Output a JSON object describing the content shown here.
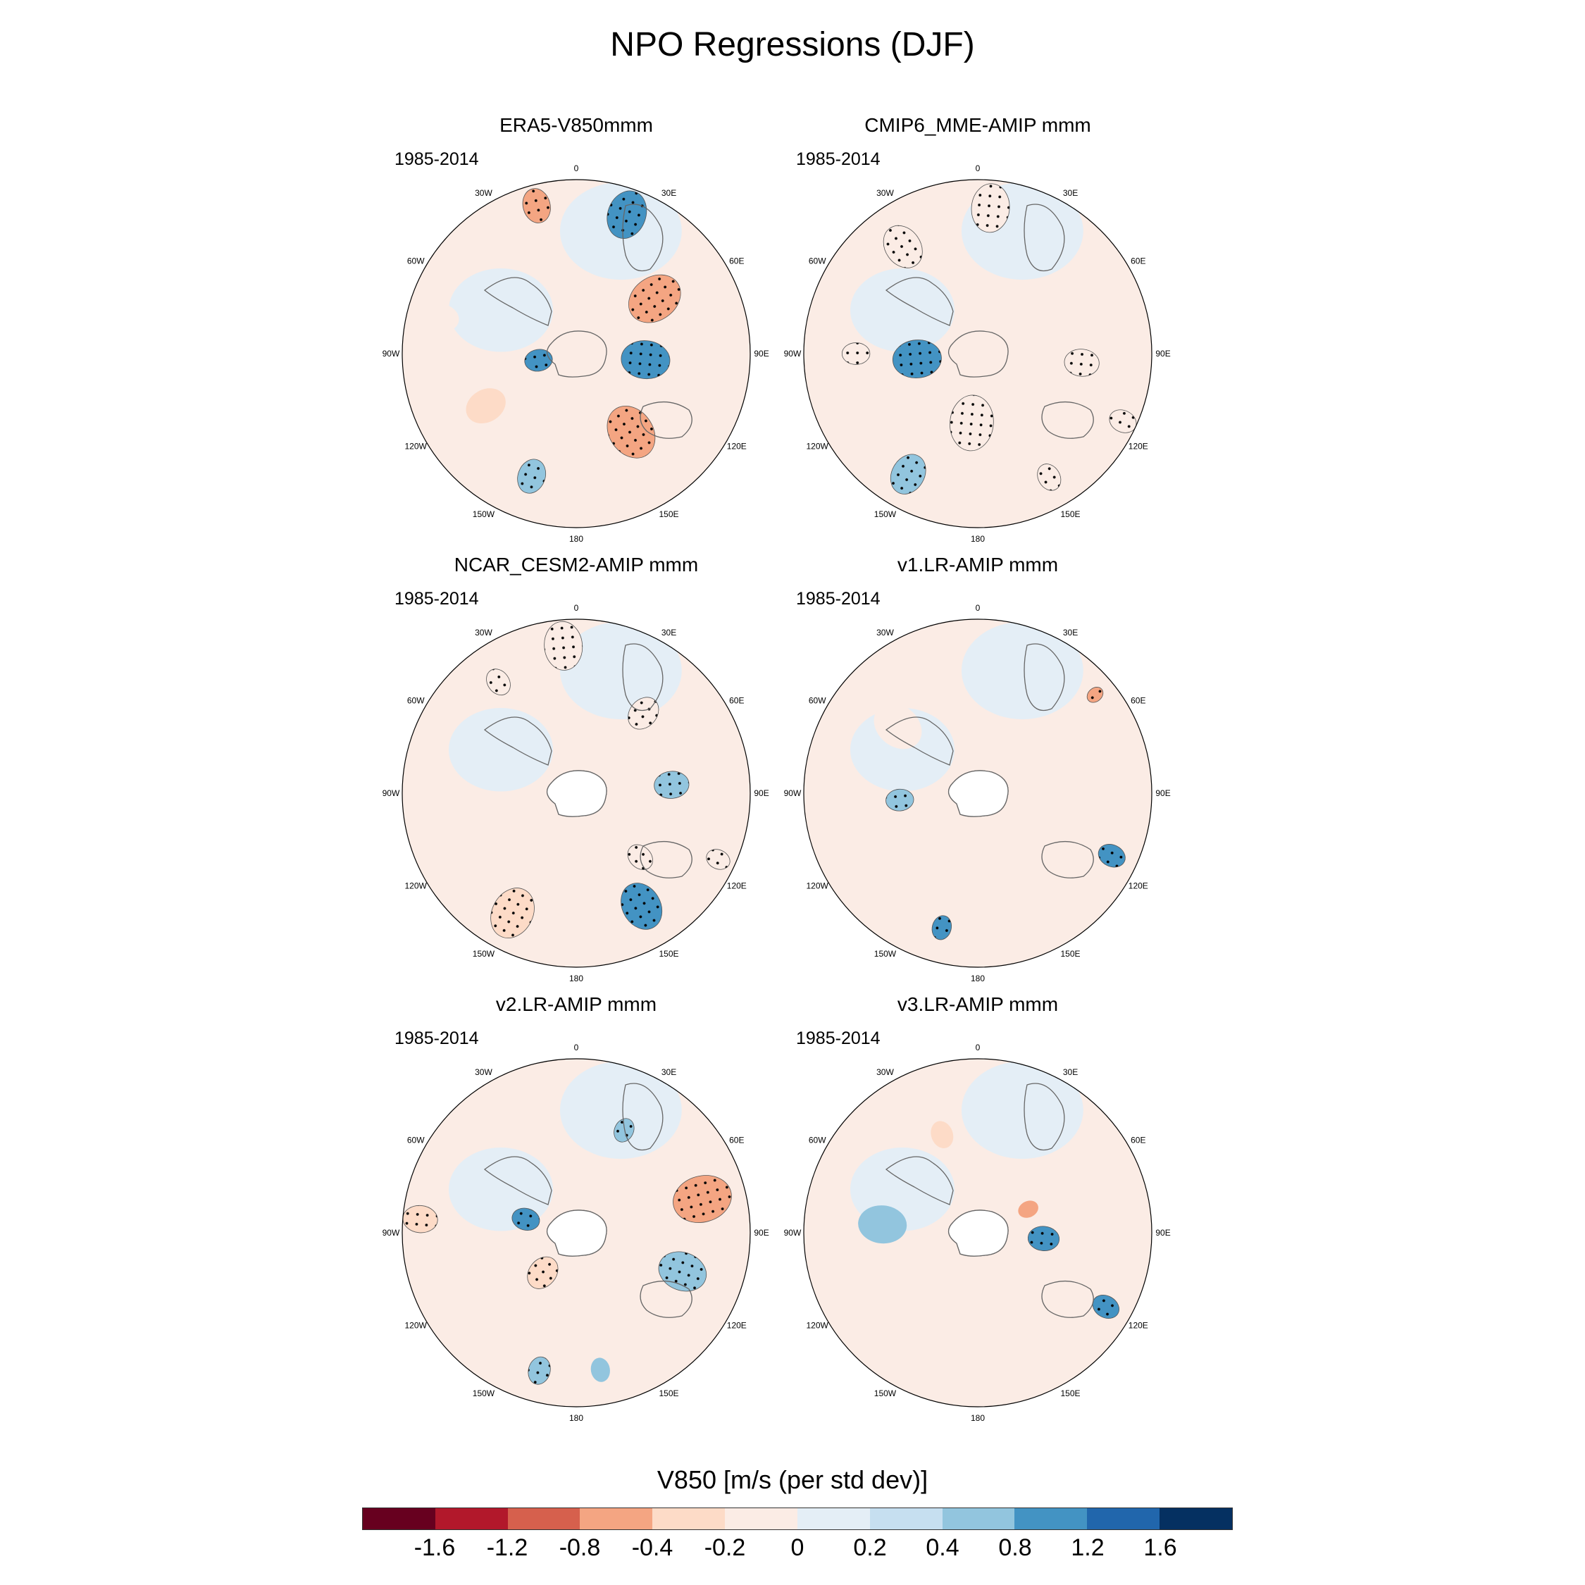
{
  "title": "NPO Regressions (DJF)",
  "colors": [
    "#67001f",
    "#b2182b",
    "#d6604d",
    "#f4a582",
    "#fddbc7",
    "#fbece5",
    "#e4eef6",
    "#c6dff0",
    "#92c5de",
    "#4393c3",
    "#2166ac",
    "#053061"
  ],
  "labels": {
    "lon": [
      "0",
      "30E",
      "60E",
      "90E",
      "120E",
      "150E",
      "180",
      "150W",
      "120W",
      "90W",
      "60W",
      "30W"
    ]
  },
  "panels": [
    {
      "title": "ERA5-V850mmm",
      "period": "1985-2014",
      "blobs": [
        {
          "lon": 345,
          "r": 0.88,
          "s": 0.1,
          "v": -0.8,
          "dots": true
        },
        {
          "lon": 20,
          "r": 0.85,
          "s": 0.14,
          "v": 0.8,
          "dots": true
        },
        {
          "lon": 55,
          "r": 0.55,
          "s": 0.16,
          "v": -0.8,
          "dots": true
        },
        {
          "lon": 95,
          "r": 0.4,
          "s": 0.14,
          "v": 0.8,
          "dots": true
        },
        {
          "lon": 145,
          "r": 0.55,
          "s": 0.16,
          "v": -0.8,
          "dots": true
        },
        {
          "lon": 260,
          "r": 0.22,
          "s": 0.08,
          "v": 0.8,
          "dots": true
        },
        {
          "lon": 240,
          "r": 0.6,
          "s": 0.12,
          "v": -0.4,
          "dots": false
        },
        {
          "lon": 200,
          "r": 0.75,
          "s": 0.1,
          "v": 0.4,
          "dots": true
        },
        {
          "lon": 285,
          "r": 0.8,
          "s": 0.1,
          "v": -0.2,
          "dots": false
        }
      ]
    },
    {
      "title": "CMIP6_MME-AMIP  mmm",
      "period": "1985-2014",
      "blobs": [
        {
          "lon": 5,
          "r": 0.84,
          "s": 0.14,
          "v": -0.2,
          "dots": true
        },
        {
          "lon": 325,
          "r": 0.75,
          "s": 0.13,
          "v": -0.2,
          "dots": true
        },
        {
          "lon": 265,
          "r": 0.35,
          "s": 0.14,
          "v": 0.8,
          "dots": true
        },
        {
          "lon": 185,
          "r": 0.4,
          "s": 0.16,
          "v": -0.2,
          "dots": true
        },
        {
          "lon": 95,
          "r": 0.6,
          "s": 0.1,
          "v": -0.2,
          "dots": true
        },
        {
          "lon": 115,
          "r": 0.92,
          "s": 0.08,
          "v": -0.2,
          "dots": true
        },
        {
          "lon": 210,
          "r": 0.8,
          "s": 0.12,
          "v": 0.4,
          "dots": true
        },
        {
          "lon": 150,
          "r": 0.82,
          "s": 0.08,
          "v": -0.2,
          "dots": true
        },
        {
          "lon": 270,
          "r": 0.7,
          "s": 0.08,
          "v": -0.2,
          "dots": true
        }
      ]
    },
    {
      "title": "NCAR_CESM2-AMIP  mmm",
      "period": "1985-2014",
      "blobs": [
        {
          "lon": 355,
          "r": 0.85,
          "s": 0.14,
          "v": -0.2,
          "dots": true
        },
        {
          "lon": 325,
          "r": 0.78,
          "s": 0.08,
          "v": -0.2,
          "dots": true
        },
        {
          "lon": 40,
          "r": 0.6,
          "s": 0.1,
          "v": -0.2,
          "dots": true
        },
        {
          "lon": 85,
          "r": 0.55,
          "s": 0.1,
          "v": 0.4,
          "dots": true
        },
        {
          "lon": 115,
          "r": 0.9,
          "s": 0.07,
          "v": -0.2,
          "dots": true
        },
        {
          "lon": 150,
          "r": 0.75,
          "s": 0.14,
          "v": 0.8,
          "dots": true
        },
        {
          "lon": 135,
          "r": 0.52,
          "s": 0.08,
          "v": -0.2,
          "dots": true
        },
        {
          "lon": 208,
          "r": 0.78,
          "s": 0.15,
          "v": -0.4,
          "dots": true
        }
      ]
    },
    {
      "title": "v1.LR-AMIP  mmm",
      "period": "1985-2014",
      "blobs": [
        {
          "lon": 50,
          "r": 0.88,
          "s": 0.05,
          "v": -0.8,
          "dots": true
        },
        {
          "lon": 265,
          "r": 0.45,
          "s": 0.08,
          "v": 0.4,
          "dots": true
        },
        {
          "lon": 115,
          "r": 0.85,
          "s": 0.08,
          "v": 0.8,
          "dots": true
        },
        {
          "lon": 195,
          "r": 0.8,
          "s": 0.07,
          "v": 0.8,
          "dots": true
        },
        {
          "lon": 210,
          "r": 0.45,
          "s": 0.1,
          "v": -0.2,
          "dots": false
        },
        {
          "lon": 310,
          "r": 0.6,
          "s": 0.15,
          "v": -0.2,
          "dots": false
        }
      ]
    },
    {
      "title": "v2.LR-AMIP  mmm",
      "period": "1985-2014",
      "blobs": [
        {
          "lon": 25,
          "r": 0.65,
          "s": 0.07,
          "v": 0.4,
          "dots": true
        },
        {
          "lon": 75,
          "r": 0.75,
          "s": 0.17,
          "v": -0.8,
          "dots": true
        },
        {
          "lon": 110,
          "r": 0.65,
          "s": 0.14,
          "v": 0.4,
          "dots": true
        },
        {
          "lon": 275,
          "r": 0.9,
          "s": 0.1,
          "v": -0.4,
          "dots": true
        },
        {
          "lon": 285,
          "r": 0.3,
          "s": 0.08,
          "v": 0.8,
          "dots": true
        },
        {
          "lon": 220,
          "r": 0.3,
          "s": 0.1,
          "v": -0.4,
          "dots": true
        },
        {
          "lon": 195,
          "r": 0.82,
          "s": 0.08,
          "v": 0.4,
          "dots": true
        },
        {
          "lon": 170,
          "r": 0.8,
          "s": 0.07,
          "v": 0.4,
          "dots": false
        }
      ]
    },
    {
      "title": "v3.LR-AMIP  mmm",
      "period": "1985-2014",
      "blobs": [
        {
          "lon": 275,
          "r": 0.55,
          "s": 0.14,
          "v": 0.4,
          "dots": false
        },
        {
          "lon": 95,
          "r": 0.38,
          "s": 0.09,
          "v": 0.8,
          "dots": true
        },
        {
          "lon": 120,
          "r": 0.85,
          "s": 0.08,
          "v": 0.8,
          "dots": true
        },
        {
          "lon": 65,
          "r": 0.32,
          "s": 0.06,
          "v": -0.8,
          "dots": false
        },
        {
          "lon": 215,
          "r": 0.7,
          "s": 0.2,
          "v": -0.2,
          "dots": false
        },
        {
          "lon": 340,
          "r": 0.6,
          "s": 0.08,
          "v": -0.4,
          "dots": false
        },
        {
          "lon": 60,
          "r": 0.8,
          "s": 0.08,
          "v": -0.2,
          "dots": false
        }
      ]
    }
  ],
  "colorbar": {
    "title": "V850 [m/s (per std dev)]",
    "ticks": [
      "-1.6",
      "-1.2",
      "-0.8",
      "-0.4",
      "-0.2",
      "0",
      "0.2",
      "0.4",
      "0.8",
      "1.2",
      "1.6"
    ],
    "levels": [
      -1.6,
      -1.2,
      -0.8,
      -0.4,
      -0.2,
      0,
      0.2,
      0.4,
      0.8,
      1.2,
      1.6
    ]
  }
}
